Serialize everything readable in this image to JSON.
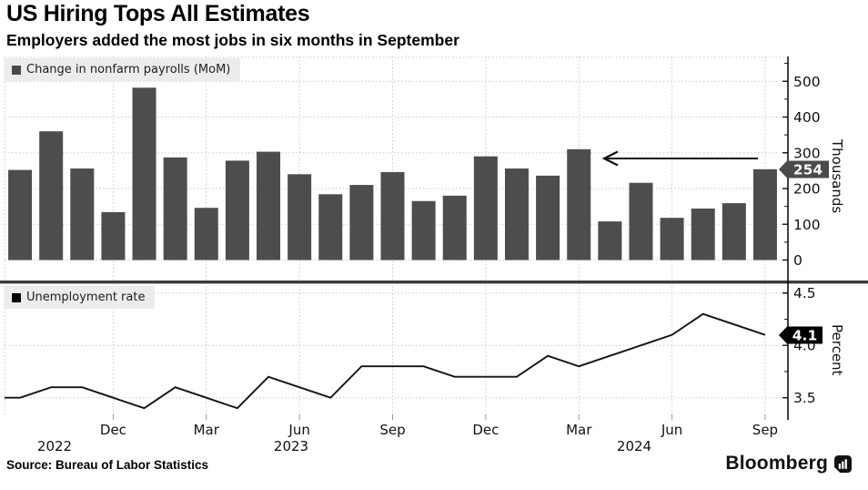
{
  "header": {
    "title": "US Hiring Tops All Estimates",
    "subtitle": "Employers added the most jobs in six months in September"
  },
  "footer": {
    "source_label": "Source: Bureau of Labor Statistics",
    "brand": "Bloomberg"
  },
  "colors": {
    "bar": "#4d4d4d",
    "line": "#141414",
    "grid": "#c9c9c9",
    "axis": "#111111",
    "legend_bg": "#ececec",
    "payrolls_swatch": "#4a4a4a",
    "unemployment_swatch": "#000000",
    "payrolls_badge_bg": "#4a4a4a",
    "unemployment_badge_bg": "#000000",
    "badge_text": "#f7f7f7",
    "separator": "#3c3c3c"
  },
  "x_axis": {
    "tick_month_indices": [
      3,
      6,
      9,
      12,
      15,
      18,
      21,
      24
    ],
    "tick_labels": [
      "Dec",
      "Mar",
      "Jun",
      "Sep",
      "Dec",
      "Mar",
      "Jun",
      "Sep"
    ],
    "year_labels": [
      "2022",
      "2023",
      "2024"
    ]
  },
  "chart_data": [
    {
      "type": "bar",
      "legend": "Change in nonfarm payrolls (MoM)",
      "axis_label": "Thousands",
      "categories": [
        "Sep 2022",
        "Oct 2022",
        "Nov 2022",
        "Dec 2022",
        "Jan 2023",
        "Feb 2023",
        "Mar 2023",
        "Apr 2023",
        "May 2023",
        "Jun 2023",
        "Jul 2023",
        "Aug 2023",
        "Sep 2023",
        "Oct 2023",
        "Nov 2023",
        "Dec 2023",
        "Jan 2024",
        "Feb 2024",
        "Mar 2024",
        "Apr 2024",
        "May 2024",
        "Jun 2024",
        "Jul 2024",
        "Aug 2024",
        "Sep 2024"
      ],
      "values": [
        252,
        360,
        256,
        134,
        482,
        287,
        146,
        278,
        303,
        240,
        184,
        210,
        246,
        165,
        180,
        290,
        256,
        236,
        310,
        108,
        216,
        118,
        144,
        159,
        254
      ],
      "ylim": [
        0,
        568
      ],
      "yticks": [
        0,
        100,
        200,
        300,
        400,
        500
      ],
      "minor_yticks": [
        50,
        150,
        250,
        350,
        450,
        550
      ],
      "grid": true,
      "badge": "254",
      "annotation": {
        "shape": "left-arrow",
        "note": "points from latest bar back toward March 2024 level"
      }
    },
    {
      "type": "line",
      "legend": "Unemployment rate",
      "axis_label": "Percent",
      "categories": [
        "Sep 2022",
        "Oct 2022",
        "Nov 2022",
        "Dec 2022",
        "Jan 2023",
        "Feb 2023",
        "Mar 2023",
        "Apr 2023",
        "May 2023",
        "Jun 2023",
        "Jul 2023",
        "Aug 2023",
        "Sep 2023",
        "Oct 2023",
        "Nov 2023",
        "Dec 2023",
        "Jan 2024",
        "Feb 2024",
        "Mar 2024",
        "Apr 2024",
        "May 2024",
        "Jun 2024",
        "Jul 2024",
        "Aug 2024",
        "Sep 2024"
      ],
      "values": [
        3.5,
        3.6,
        3.6,
        3.5,
        3.4,
        3.6,
        3.5,
        3.4,
        3.7,
        3.6,
        3.5,
        3.8,
        3.8,
        3.8,
        3.7,
        3.7,
        3.7,
        3.9,
        3.8,
        3.9,
        4.0,
        4.1,
        4.3,
        4.2,
        4.1
      ],
      "ylim": [
        3.34,
        4.6
      ],
      "yticks": [
        3.5,
        4.0,
        4.5
      ],
      "minor_yticks": [
        3.75,
        4.25
      ],
      "grid": true,
      "badge": "4.1"
    }
  ]
}
